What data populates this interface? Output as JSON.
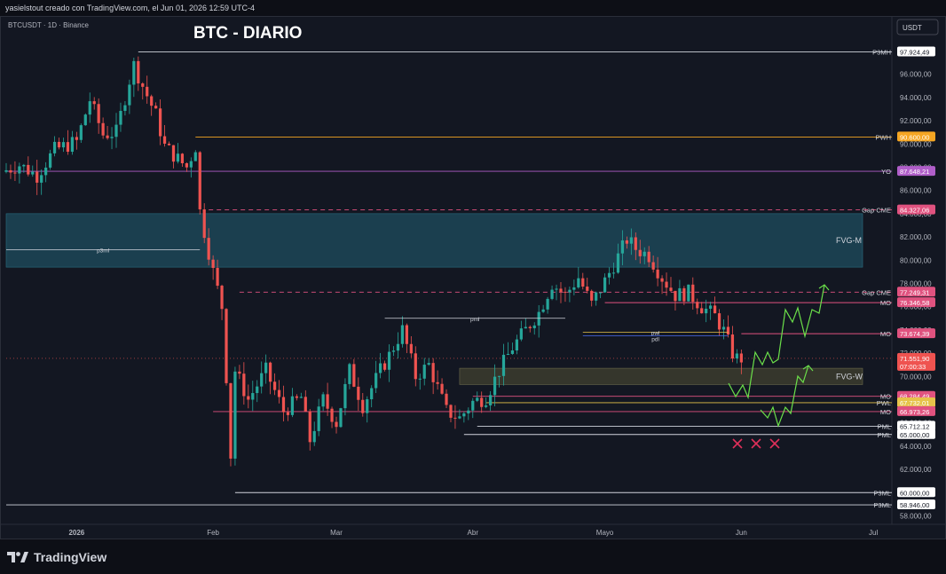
{
  "header": {
    "credit": "yasielstout creado con TradingView.com, el Jun 01, 2026 12:59 UTC-4"
  },
  "chart": {
    "symbol": "BTCUSDT · 1D · Binance",
    "title": "BTC - DIARIO",
    "currency": "USDT"
  },
  "footer": {
    "brand": "TradingView"
  },
  "chart_data": {
    "type": "candlestick",
    "title": "BTC - DIARIO",
    "symbol": "BTCUSDT · 1D · Binance",
    "currency": "USDT",
    "ylim": [
      57500,
      98800
    ],
    "xlim": [
      "2025-12-16",
      "2026-07-05"
    ],
    "y_ticks": [
      58000,
      60000,
      62000,
      64000,
      66000,
      68000,
      70000,
      72000,
      74000,
      76000,
      78000,
      80000,
      82000,
      84000,
      86000,
      88000,
      90000,
      92000,
      94000,
      96000
    ],
    "y_tick_labels": [
      "58.000,00",
      "60.000,00",
      "62.000,00",
      "64.000,00",
      "66.000,00",
      "68.000,00",
      "70.000,00",
      "72.000,00",
      "74.000,00",
      "76.000,00",
      "78.000,00",
      "80.000,00",
      "82.000,00",
      "84.000,00",
      "86.000,00",
      "88.000,00",
      "90.000,00",
      "92.000,00",
      "94.000,00",
      "96.000,00"
    ],
    "x_ticks": [
      {
        "date": "2026-01-01",
        "label": "2026"
      },
      {
        "date": "2026-02-01",
        "label": "Feb"
      },
      {
        "date": "2026-03-01",
        "label": "Mar"
      },
      {
        "date": "2026-04-01",
        "label": "Abr"
      },
      {
        "date": "2026-05-01",
        "label": "Mayo"
      },
      {
        "date": "2026-06-01",
        "label": "Jun"
      },
      {
        "date": "2026-07-01",
        "label": "Jul"
      }
    ],
    "colors": {
      "up": "#26a69a",
      "down": "#ef5350",
      "fvg_m": "#1f4e5f",
      "fvg_w": "#3a3a2e"
    },
    "ohlc_path": [
      [
        "2025-12-16",
        87600
      ],
      [
        "2025-12-20",
        88200
      ],
      [
        "2025-12-24",
        87300
      ],
      [
        "2025-12-28",
        89500
      ],
      [
        "2026-01-02",
        90200
      ],
      [
        "2026-01-05",
        93800
      ],
      [
        "2026-01-08",
        90800
      ],
      [
        "2026-01-11",
        91000
      ],
      [
        "2026-01-14",
        95500
      ],
      [
        "2026-01-15",
        96800
      ],
      [
        "2026-01-17",
        95000
      ],
      [
        "2026-01-20",
        92500
      ],
      [
        "2026-01-22",
        89800
      ],
      [
        "2026-01-25",
        88700
      ],
      [
        "2026-01-27",
        88000
      ],
      [
        "2026-01-29",
        89800
      ],
      [
        "2026-01-30",
        84200
      ],
      [
        "2026-02-02",
        79000
      ],
      [
        "2026-02-04",
        76000
      ],
      [
        "2026-02-05",
        70000
      ],
      [
        "2026-02-06",
        63200
      ],
      [
        "2026-02-07",
        70500
      ],
      [
        "2026-02-10",
        68000
      ],
      [
        "2026-02-14",
        70500
      ],
      [
        "2026-02-18",
        67000
      ],
      [
        "2026-02-22",
        68200
      ],
      [
        "2026-02-24",
        64500
      ],
      [
        "2026-02-27",
        68000
      ],
      [
        "2026-03-02",
        66000
      ],
      [
        "2026-03-05",
        70500
      ],
      [
        "2026-03-08",
        67500
      ],
      [
        "2026-03-12",
        70500
      ],
      [
        "2026-03-14",
        71800
      ],
      [
        "2026-03-17",
        74000
      ],
      [
        "2026-03-20",
        70000
      ],
      [
        "2026-03-23",
        71000
      ],
      [
        "2026-03-27",
        67000
      ],
      [
        "2026-03-30",
        66400
      ],
      [
        "2026-04-02",
        67800
      ],
      [
        "2026-04-05",
        68200
      ],
      [
        "2026-04-08",
        70500
      ],
      [
        "2026-04-11",
        72500
      ],
      [
        "2026-04-14",
        74000
      ],
      [
        "2026-04-17",
        75500
      ],
      [
        "2026-04-20",
        78000
      ],
      [
        "2026-04-23",
        77000
      ],
      [
        "2026-04-26",
        78500
      ],
      [
        "2026-04-29",
        76200
      ],
      [
        "2026-05-02",
        78200
      ],
      [
        "2026-05-05",
        80300
      ],
      [
        "2026-05-07",
        81800
      ],
      [
        "2026-05-09",
        81000
      ],
      [
        "2026-05-12",
        80400
      ],
      [
        "2026-05-15",
        78500
      ],
      [
        "2026-05-18",
        77000
      ],
      [
        "2026-05-21",
        77200
      ],
      [
        "2026-05-24",
        76000
      ],
      [
        "2026-05-27",
        75200
      ],
      [
        "2026-05-29",
        73900
      ],
      [
        "2026-05-31",
        72000
      ],
      [
        "2026-06-01",
        71551.9
      ]
    ],
    "levels": [
      {
        "label": "P3MH",
        "value": 97924.49,
        "value_label": "97.924,49",
        "color": "#d1d4dc",
        "start": "2026-01-15"
      },
      {
        "label": "PWH",
        "value": 90600.0,
        "value_label": "90.600,00",
        "color": "#f5a623",
        "start": "2026-01-28"
      },
      {
        "label": "YO",
        "value": 87648.21,
        "value_label": "87.648,21",
        "color": "#b05ec9",
        "start": "2025-12-16"
      },
      {
        "label": "Gap CME",
        "value": 84327.06,
        "value_label": "84.327,06",
        "color": "#e0527f",
        "start": "2026-01-31",
        "dashed": true
      },
      {
        "label": "Gap CME",
        "value": 77249.31,
        "value_label": "77.249,31",
        "color": "#e0527f",
        "start": "2026-02-07",
        "dashed": true
      },
      {
        "label": "MO",
        "value": 76346.58,
        "value_label": "76.346,58",
        "color": "#e0527f",
        "start": "2026-05-01"
      },
      {
        "label": "MO",
        "value": 73674.39,
        "value_label": "73.674,39",
        "color": "#e0527f",
        "start": "2026-06-01"
      },
      {
        "label": "MO",
        "value": 68284.49,
        "value_label": "68.284,49",
        "color": "#e0527f",
        "start": "2026-04-01"
      },
      {
        "label": "PWL",
        "value": 67732.01,
        "value_label": "67.732,01",
        "color": "#e6c34a",
        "start": "2026-04-04"
      },
      {
        "label": "MO",
        "value": 66973.26,
        "value_label": "66.973,26",
        "color": "#e0527f",
        "start": "2026-02-01"
      },
      {
        "label": "PML",
        "value": 65712.12,
        "value_label": "65.712,12",
        "color": "#d1d4dc",
        "start": "2026-04-02"
      },
      {
        "label": "PML",
        "value": 65000.0,
        "value_label": "65.000,00",
        "color": "#d1d4dc",
        "start": "2026-03-30"
      },
      {
        "label": "P3ML",
        "value": 60000.0,
        "value_label": "60.000,00",
        "color": "#d1d4dc",
        "start": "2026-02-06"
      },
      {
        "label": "P3ML",
        "value": 58946.0,
        "value_label": "58.946,00",
        "color": "#d1d4dc",
        "start": "2025-12-16"
      }
    ],
    "current_price": {
      "value": 71551.9,
      "value_label": "71.551,90",
      "countdown": "07:00:33",
      "color": "#ef5350"
    },
    "zones": [
      {
        "label": "FVG-M",
        "from": 79400,
        "to": 84000,
        "start": "2025-12-16"
      },
      {
        "label": "FVG-W",
        "from": 69300,
        "to": 70700,
        "start": "2026-03-29"
      }
    ],
    "annotations": [
      {
        "label": "p3ml",
        "value": 80900,
        "start": "2025-12-16",
        "end": "2026-01-29"
      },
      {
        "label": "pml",
        "value": 75000,
        "start": "2026-03-12",
        "end": "2026-04-22"
      },
      {
        "label": "pwl",
        "value": 73800,
        "start": "2026-04-26",
        "end": "2026-05-29"
      },
      {
        "label": "pdl",
        "value": 73500,
        "start": "2026-04-26",
        "end": "2026-05-29"
      }
    ]
  }
}
